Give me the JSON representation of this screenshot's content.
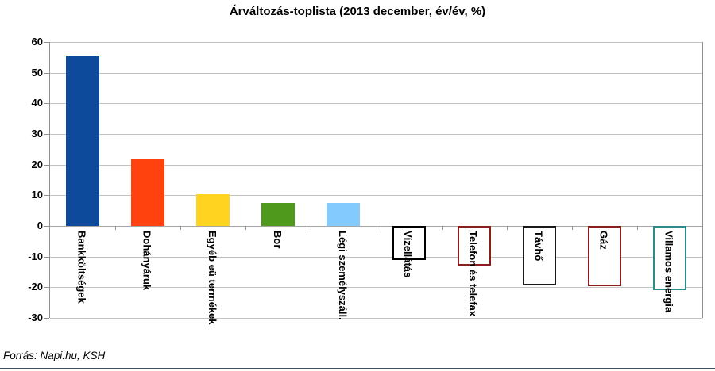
{
  "footer": "Forrás: Napi.hu, KSH",
  "colors": {
    "grid": "#c2c2c2",
    "axis": "#8f8f8f",
    "bottom_rule": "#3d5166",
    "text": "#000000"
  },
  "chart_data": {
    "type": "bar",
    "title": "Árváltozás-toplista (2013 december, év/év, %)",
    "categories": [
      "Bankköltségek",
      "Dohányáruk",
      "Egyéb eü termékek",
      "Bor",
      "Légi személyszáll.",
      "Vízellátás",
      "Telefon és telefax",
      "Távhő",
      "Gáz",
      "Villamos energia"
    ],
    "values": [
      55.4,
      22,
      10.3,
      7.4,
      7.4,
      -11,
      -12.9,
      -19.4,
      -19.7,
      -20.9
    ],
    "bar_styles": [
      {
        "fill": "#0d4a9b",
        "border": "none"
      },
      {
        "fill": "#ff420e",
        "border": "none"
      },
      {
        "fill": "#ffd320",
        "border": "none"
      },
      {
        "fill": "#4f9a1c",
        "border": "none"
      },
      {
        "fill": "#83caff",
        "border": "none"
      },
      {
        "fill": "#ffffff",
        "border": "#000000"
      },
      {
        "fill": "#ffffff",
        "border": "#8c1d1d"
      },
      {
        "fill": "#ffffff",
        "border": "#1a1a1a"
      },
      {
        "fill": "#ffffff",
        "border": "#8c1d1d"
      },
      {
        "fill": "#ffffff",
        "border": "#2d8c8a"
      }
    ],
    "xlabel": "",
    "ylabel": "",
    "ylim": [
      -30,
      60
    ],
    "yticks": [
      60,
      50,
      40,
      30,
      20,
      10,
      0,
      -10,
      -20,
      -30
    ],
    "grid": true,
    "legend": "none"
  }
}
